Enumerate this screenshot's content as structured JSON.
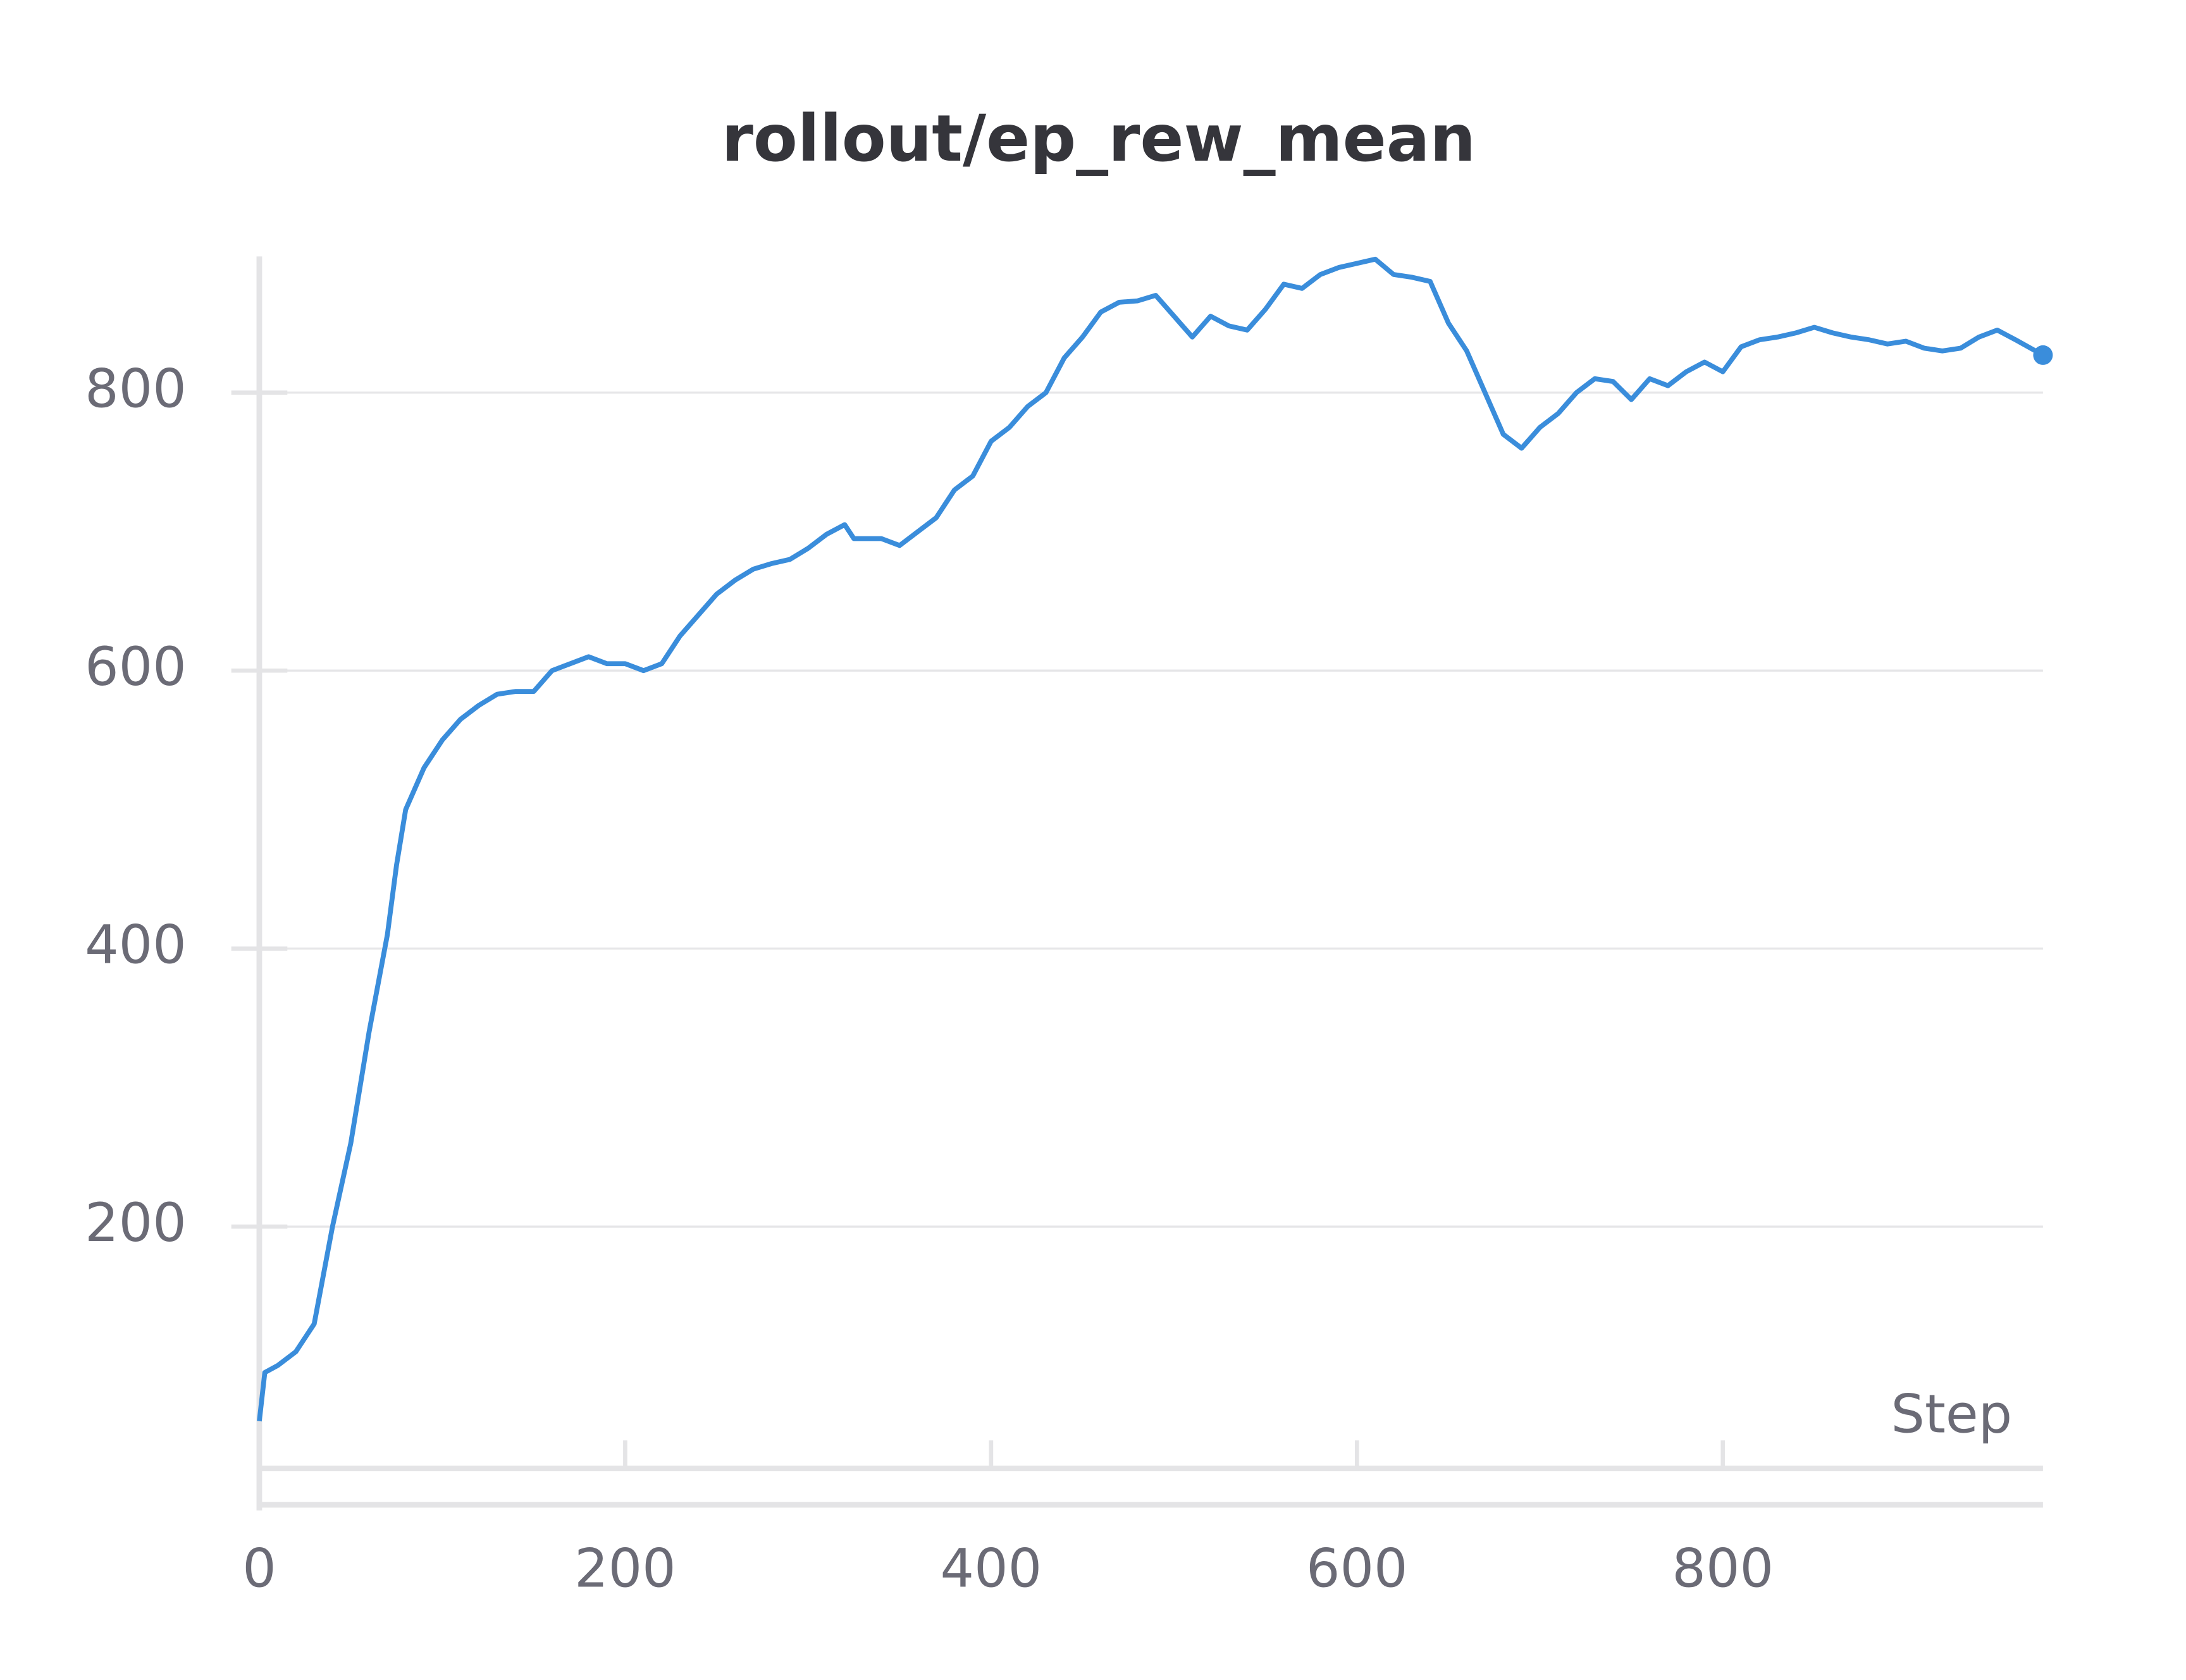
{
  "chart_data": {
    "type": "line",
    "title": "rollout/ep_rew_mean",
    "x_label": "Step",
    "x": [
      0,
      3,
      10,
      20,
      30,
      40,
      50,
      60,
      70,
      75,
      80,
      90,
      100,
      110,
      120,
      130,
      140,
      150,
      160,
      170,
      180,
      190,
      200,
      210,
      220,
      230,
      240,
      250,
      260,
      270,
      280,
      290,
      300,
      310,
      320,
      325,
      340,
      350,
      360,
      370,
      380,
      390,
      400,
      410,
      420,
      430,
      440,
      450,
      460,
      470,
      480,
      490,
      500,
      510,
      520,
      530,
      540,
      550,
      560,
      570,
      580,
      590,
      600,
      610,
      620,
      630,
      640,
      650,
      660,
      670,
      680,
      690,
      700,
      710,
      720,
      730,
      740,
      750,
      760,
      770,
      780,
      790,
      800,
      810,
      820,
      830,
      840,
      850,
      860,
      870,
      880,
      890,
      900,
      910,
      920,
      930,
      940,
      950,
      960,
      975
    ],
    "series": [
      {
        "name": "rollout/ep_rew_mean",
        "color": "#3a8ddb",
        "values": [
          60,
          95,
          100,
          110,
          130,
          200,
          260,
          340,
          410,
          460,
          500,
          530,
          550,
          565,
          575,
          583,
          585,
          585,
          600,
          605,
          610,
          605,
          605,
          600,
          605,
          625,
          640,
          655,
          665,
          673,
          677,
          680,
          688,
          698,
          705,
          695,
          695,
          690,
          700,
          710,
          730,
          740,
          765,
          775,
          790,
          800,
          825,
          840,
          858,
          865,
          866,
          870,
          855,
          840,
          855,
          848,
          845,
          860,
          878,
          875,
          885,
          890,
          893,
          896,
          885,
          883,
          880,
          850,
          830,
          800,
          770,
          760,
          775,
          785,
          800,
          810,
          808,
          795,
          810,
          805,
          815,
          822,
          815,
          833,
          838,
          840,
          843,
          847,
          843,
          840,
          838,
          835,
          837,
          832,
          830,
          832,
          840,
          845,
          838,
          827
        ]
      }
    ],
    "xlim": [
      0,
      975
    ],
    "ylim": [
      26,
      898
    ],
    "xticks": [
      0,
      200,
      400,
      600,
      800
    ],
    "yticks": [
      200,
      400,
      600,
      800
    ],
    "grid": true
  }
}
